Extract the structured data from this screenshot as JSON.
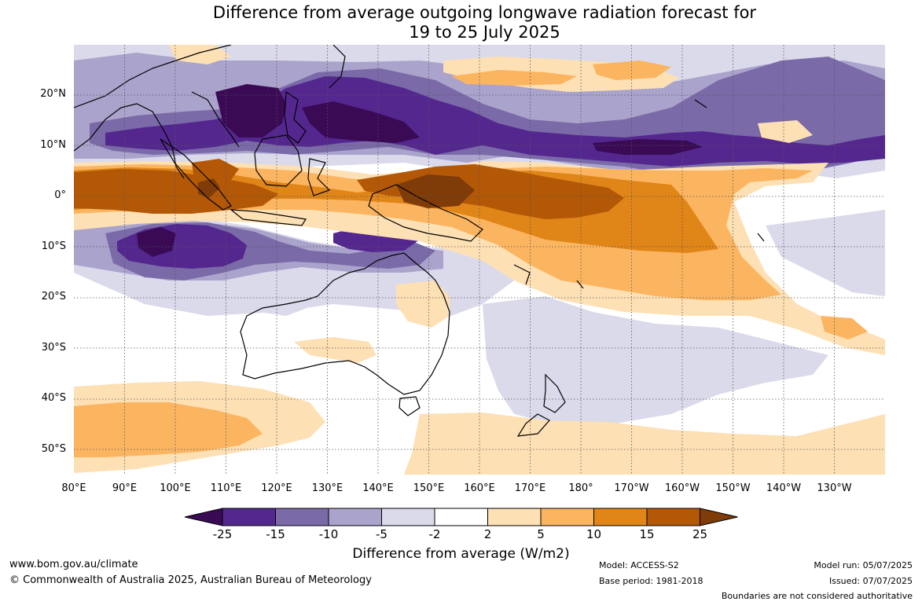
{
  "title_line1": "Difference from average outgoing longwave radiation forecast for",
  "title_line2": "19 to 25 July 2025",
  "lat_labels": [
    "20°N",
    "10°N",
    "0°",
    "10°S",
    "20°S",
    "30°S",
    "40°S",
    "50°S"
  ],
  "lon_labels": [
    "80°E",
    "90°E",
    "100°E",
    "110°E",
    "120°E",
    "130°E",
    "140°E",
    "150°E",
    "160°E",
    "170°E",
    "180°",
    "170°W",
    "160°W",
    "150°W",
    "140°W",
    "130°W"
  ],
  "colorbar": {
    "ticks": [
      "-25",
      "-15",
      "-10",
      "-5",
      "-2",
      "2",
      "5",
      "10",
      "15",
      "25"
    ],
    "colors": [
      "#3a0a55",
      "#54278f",
      "#7a6aa8",
      "#aaa3cc",
      "#dadaeb",
      "#ffffff",
      "#fde0b4",
      "#fbb561",
      "#e08518",
      "#b35806",
      "#7f3b08"
    ],
    "label": "Difference from average (W/m2)"
  },
  "footer": {
    "website": "www.bom.gov.au/climate",
    "copyright": "© Commonwealth of Australia 2025, Australian Bureau of Meteorology",
    "model": "Model: ACCESS-S2",
    "base_period": "Base period: 1981-2018",
    "model_run": "Model run: 05/07/2025",
    "issued": "Issued: 07/07/2025",
    "disclaimer": "Boundaries are not considered authoritative"
  }
}
